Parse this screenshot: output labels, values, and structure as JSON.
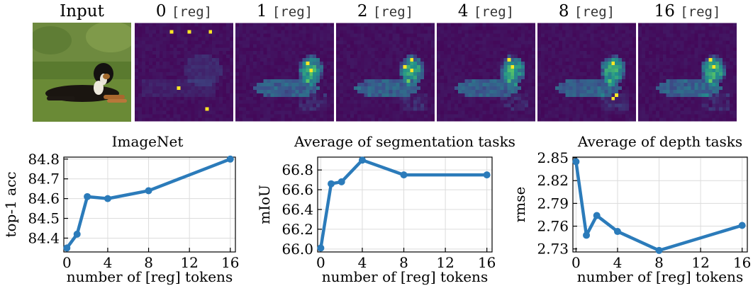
{
  "panels": {
    "input_label": "Input",
    "columns": [
      {
        "count": "0",
        "tag": "[reg]"
      },
      {
        "count": "1",
        "tag": "[reg]"
      },
      {
        "count": "2",
        "tag": "[reg]"
      },
      {
        "count": "4",
        "tag": "[reg]"
      },
      {
        "count": "8",
        "tag": "[reg]"
      },
      {
        "count": "16",
        "tag": "[reg]"
      }
    ]
  },
  "colors": {
    "line": "#2b7bba",
    "grid": "#dcdcdc",
    "map_low": "#440154",
    "map_mid": "#21918c",
    "map_high": "#fde725"
  },
  "chart_data": [
    {
      "type": "line",
      "title": "ImageNet",
      "xlabel": "number of [reg] tokens",
      "ylabel": "top-1 acc",
      "x": [
        0,
        1,
        2,
        4,
        8,
        16
      ],
      "y": [
        84.35,
        84.42,
        84.61,
        84.6,
        84.64,
        84.8
      ],
      "xticks": [
        0,
        4,
        8,
        12,
        16
      ],
      "yticks": [
        84.4,
        84.5,
        84.6,
        84.7,
        84.8
      ],
      "xlim": [
        -0.3,
        16.5
      ],
      "ylim": [
        84.33,
        84.81
      ],
      "grid": true
    },
    {
      "type": "line",
      "title": "Average of segmentation tasks",
      "xlabel": "number of [reg] tokens",
      "ylabel": "mIoU",
      "x": [
        0,
        1,
        2,
        4,
        8,
        16
      ],
      "y": [
        66.01,
        66.66,
        66.68,
        66.9,
        66.75,
        66.75
      ],
      "xticks": [
        0,
        4,
        8,
        12,
        16
      ],
      "yticks": [
        66.0,
        66.2,
        66.4,
        66.6,
        66.8
      ],
      "ytick_labels": [
        "66.0",
        "66.2",
        "66.4",
        "66.6",
        "66.8"
      ],
      "xlim": [
        -0.3,
        16.5
      ],
      "ylim": [
        65.97,
        66.93
      ],
      "grid": true
    },
    {
      "type": "line",
      "title": "Average of depth tasks",
      "xlabel": "number of [reg] tokens",
      "ylabel": "rmse",
      "x": [
        0,
        1,
        2,
        4,
        8,
        16
      ],
      "y": [
        2.845,
        2.748,
        2.774,
        2.753,
        2.728,
        2.761
      ],
      "xticks": [
        0,
        4,
        8,
        12,
        16
      ],
      "yticks": [
        2.73,
        2.76,
        2.79,
        2.82,
        2.85
      ],
      "xlim": [
        -0.3,
        16.5
      ],
      "ylim": [
        2.726,
        2.851
      ],
      "grid": true
    }
  ]
}
